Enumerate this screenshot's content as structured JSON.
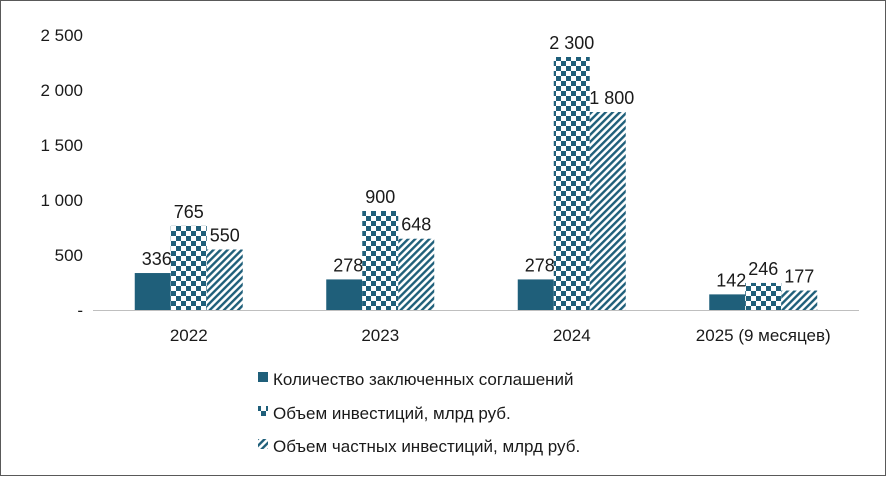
{
  "chart_data": {
    "type": "bar",
    "categories": [
      "2022",
      "2023",
      "2024",
      "2025 (9 месяцев)"
    ],
    "series": [
      {
        "name": "Количество заключенных соглашений",
        "values": [
          336,
          278,
          278,
          142
        ],
        "data_labels": [
          "336",
          "278",
          "278",
          "142"
        ],
        "pattern": "solid"
      },
      {
        "name": "Объем инвестиций, млрд руб.",
        "values": [
          765,
          900,
          2300,
          246
        ],
        "data_labels": [
          "765",
          "900",
          "2 300",
          "246"
        ],
        "pattern": "checker"
      },
      {
        "name": "Объем частных инвестиций, млрд руб.",
        "values": [
          550,
          648,
          1800,
          177
        ],
        "data_labels": [
          "550",
          "648",
          "1 800",
          "177"
        ],
        "pattern": "diagonal"
      }
    ],
    "y_ticks": [
      {
        "value": 0,
        "label": "-"
      },
      {
        "value": 500,
        "label": "500"
      },
      {
        "value": 1000,
        "label": "1 000"
      },
      {
        "value": 1500,
        "label": "1 500"
      },
      {
        "value": 2000,
        "label": "2 000"
      },
      {
        "value": 2500,
        "label": "2 500"
      }
    ],
    "ylim": [
      0,
      2500
    ],
    "grid": false,
    "legend_position": "bottom",
    "title": "",
    "xlabel": "",
    "ylabel": ""
  },
  "colors": {
    "series": "#1f5f7a",
    "axis": "#bfbfbf"
  }
}
